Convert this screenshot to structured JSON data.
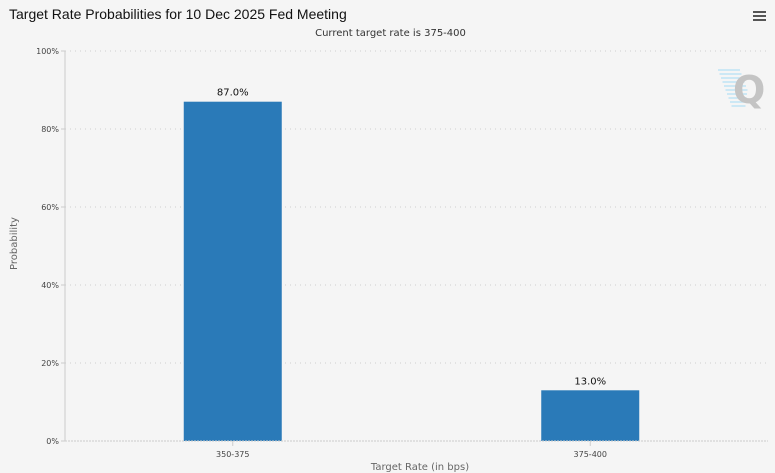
{
  "chart_data": {
    "type": "bar",
    "title": "Target Rate Probabilities for 10 Dec 2025 Fed Meeting",
    "subtitle": "Current target rate is 375-400",
    "xlabel": "Target Rate (in bps)",
    "ylabel": "Probability",
    "categories": [
      "350-375",
      "375-400"
    ],
    "values": [
      87.0,
      13.0
    ],
    "data_labels": [
      "87.0%",
      "13.0%"
    ],
    "ylim": [
      0,
      100
    ],
    "yticks": [
      "0%",
      "20%",
      "40%",
      "60%",
      "80%",
      "100%"
    ],
    "grid": true,
    "bar_color": "#2a7ab8"
  },
  "menu_icon": "hamburger-menu-icon",
  "watermark": "Q"
}
